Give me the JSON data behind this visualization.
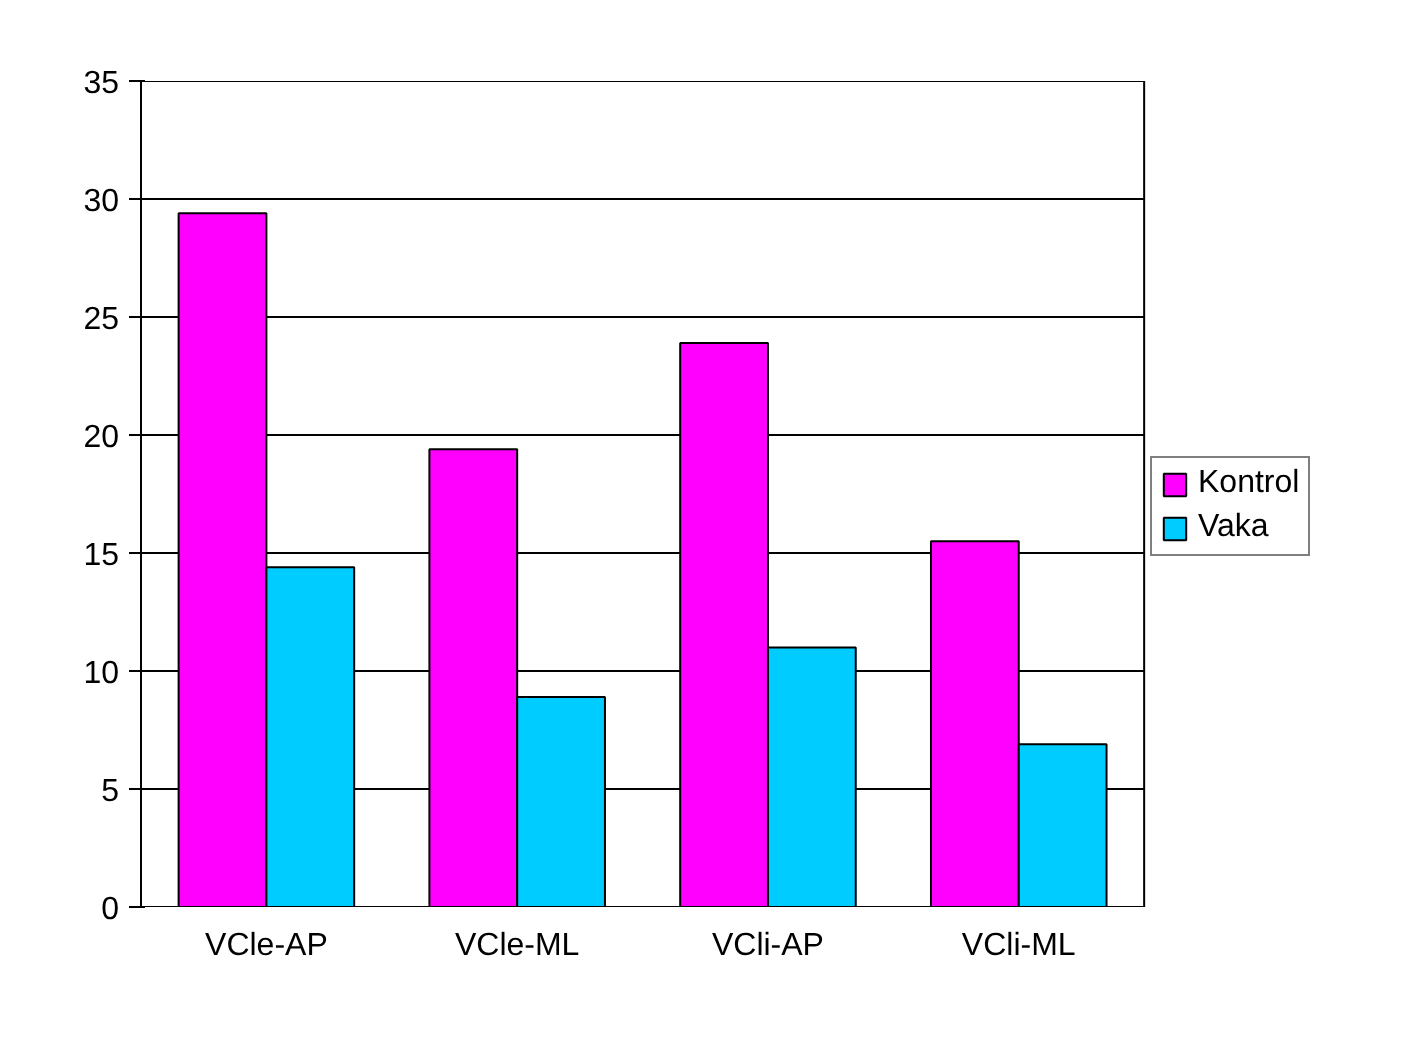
{
  "chart_data": {
    "type": "bar",
    "categories": [
      "VCle-AP",
      "VCle-ML",
      "VCli-AP",
      "VCli-ML"
    ],
    "series": [
      {
        "name": "Kontrol",
        "color": "#ff00ff",
        "values": [
          29.4,
          19.4,
          23.9,
          15.5
        ]
      },
      {
        "name": "Vaka",
        "color": "#00ccff",
        "values": [
          14.4,
          8.9,
          11.0,
          6.9
        ]
      }
    ],
    "ylim": [
      0,
      35
    ],
    "yticks": [
      0,
      5,
      10,
      15,
      20,
      25,
      30,
      35
    ],
    "grid": "y",
    "legend": "right"
  }
}
